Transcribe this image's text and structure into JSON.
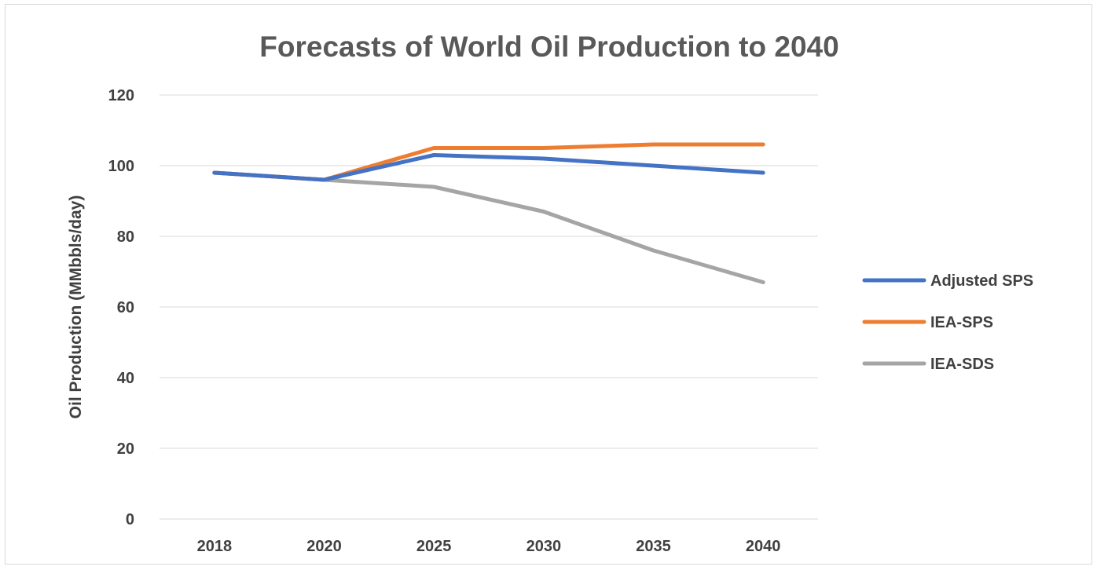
{
  "chart_data": {
    "type": "line",
    "title": "Forecasts of World Oil Production to 2040",
    "xlabel": "",
    "ylabel": "Oil Production (MMbbls/day)",
    "categories": [
      "2018",
      "2020",
      "2025",
      "2030",
      "2035",
      "2040"
    ],
    "ylim": [
      0,
      120
    ],
    "yticks": [
      "0",
      "20",
      "40",
      "60",
      "80",
      "100",
      "120"
    ],
    "grid": true,
    "legend_position": "right",
    "series": [
      {
        "name": "Adjusted SPS",
        "color": "#4472c4",
        "values": [
          98,
          96,
          103,
          102,
          100,
          98
        ]
      },
      {
        "name": "IEA-SPS",
        "color": "#ed7d31",
        "values": [
          98,
          96,
          105,
          105,
          106,
          106
        ]
      },
      {
        "name": "IEA-SDS",
        "color": "#a5a5a5",
        "values": [
          98,
          96,
          94,
          87,
          76,
          67
        ]
      }
    ]
  }
}
